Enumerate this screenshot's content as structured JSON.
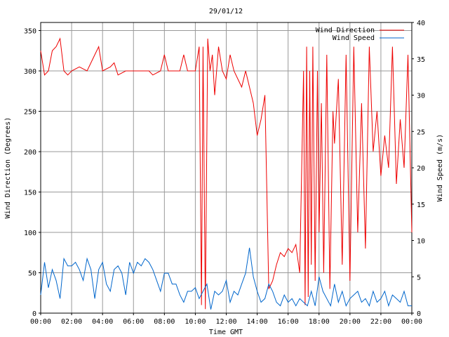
{
  "chart_data": {
    "type": "line",
    "title": "29/01/12",
    "xlabel": "Time GMT",
    "ylabel_left": "Wind Direction (Degrees)",
    "ylabel_right": "Wind Speed (m/s)",
    "x_ticks": [
      "00:00",
      "02:00",
      "04:00",
      "06:00",
      "08:00",
      "10:00",
      "12:00",
      "14:00",
      "16:00",
      "18:00",
      "20:00",
      "22:00",
      "00:00"
    ],
    "x_range_hours": [
      0,
      24
    ],
    "y_left": {
      "min": 0,
      "max": 360,
      "ticks": [
        0,
        50,
        100,
        150,
        200,
        250,
        300,
        350
      ]
    },
    "y_right": {
      "min": 0,
      "max": 40,
      "ticks": [
        0,
        5,
        10,
        15,
        20,
        25,
        30,
        35,
        40
      ]
    },
    "grid": true,
    "legend": "top-right",
    "series": [
      {
        "name": "Wind Direction",
        "axis": "left",
        "color": "#ee0000",
        "x": [
          0,
          0.25,
          0.5,
          0.75,
          1,
          1.25,
          1.5,
          1.75,
          2,
          2.5,
          3,
          3.5,
          3.75,
          4,
          4.5,
          4.75,
          5,
          5.5,
          6,
          6.5,
          7,
          7.25,
          7.75,
          8,
          8.25,
          8.5,
          8.75,
          9,
          9.25,
          9.5,
          9.75,
          10,
          10.25,
          10.4,
          10.5,
          10.65,
          10.8,
          10.95,
          11.1,
          11.25,
          11.5,
          11.75,
          12,
          12.25,
          12.5,
          12.75,
          13,
          13.25,
          13.5,
          13.75,
          14,
          14.25,
          14.5,
          14.75,
          15,
          15.25,
          15.5,
          15.75,
          16,
          16.25,
          16.5,
          16.75,
          17,
          17.1,
          17.2,
          17.3,
          17.4,
          17.5,
          17.6,
          17.75,
          17.9,
          18,
          18.15,
          18.3,
          18.5,
          18.7,
          18.9,
          19,
          19.25,
          19.5,
          19.75,
          20,
          20.25,
          20.5,
          20.75,
          21,
          21.25,
          21.5,
          21.75,
          22,
          22.25,
          22.5,
          22.75,
          23,
          23.25,
          23.5,
          23.75,
          24
        ],
        "values": [
          325,
          295,
          300,
          325,
          330,
          340,
          300,
          295,
          300,
          305,
          300,
          320,
          330,
          300,
          305,
          310,
          295,
          300,
          300,
          300,
          300,
          295,
          300,
          320,
          300,
          300,
          300,
          300,
          320,
          300,
          300,
          300,
          330,
          10,
          330,
          5,
          340,
          300,
          320,
          270,
          330,
          300,
          290,
          320,
          300,
          290,
          280,
          300,
          280,
          260,
          220,
          240,
          270,
          30,
          40,
          60,
          75,
          70,
          80,
          75,
          85,
          50,
          300,
          10,
          330,
          20,
          300,
          60,
          330,
          40,
          300,
          100,
          260,
          50,
          320,
          30,
          250,
          210,
          290,
          60,
          320,
          40,
          330,
          100,
          260,
          80,
          330,
          200,
          250,
          170,
          220,
          180,
          330,
          160,
          240,
          180,
          320,
          100
        ]
      },
      {
        "name": "Wind Speed",
        "axis": "right",
        "color": "#0066cc",
        "x": [
          0,
          0.25,
          0.5,
          0.75,
          1,
          1.25,
          1.5,
          1.75,
          2,
          2.25,
          2.5,
          2.75,
          3,
          3.25,
          3.5,
          3.75,
          4,
          4.25,
          4.5,
          4.75,
          5,
          5.25,
          5.5,
          5.75,
          6,
          6.25,
          6.5,
          6.75,
          7,
          7.25,
          7.5,
          7.75,
          8,
          8.25,
          8.5,
          8.75,
          9,
          9.25,
          9.5,
          9.75,
          10,
          10.25,
          10.5,
          10.75,
          11,
          11.25,
          11.5,
          11.75,
          12,
          12.25,
          12.5,
          12.75,
          13,
          13.25,
          13.5,
          13.75,
          14,
          14.25,
          14.5,
          14.75,
          15,
          15.25,
          15.5,
          15.75,
          16,
          16.25,
          16.5,
          16.75,
          17,
          17.25,
          17.5,
          17.75,
          18,
          18.25,
          18.5,
          18.75,
          19,
          19.25,
          19.5,
          19.75,
          20,
          20.25,
          20.5,
          20.75,
          21,
          21.25,
          21.5,
          21.75,
          22,
          22.25,
          22.5,
          22.75,
          23,
          23.25,
          23.5,
          23.75,
          24
        ],
        "values": [
          2.5,
          7,
          3.5,
          6,
          4.5,
          2,
          7.5,
          6.5,
          6.5,
          7,
          6,
          4.5,
          7.5,
          6,
          2,
          6,
          7,
          4,
          3,
          6,
          6.5,
          5.5,
          2.5,
          7,
          5.5,
          7,
          6.5,
          7.5,
          7,
          6,
          4.5,
          3,
          5.5,
          5.5,
          4,
          4,
          2.5,
          1.5,
          3,
          3,
          3.5,
          2,
          3,
          4,
          0.5,
          3,
          2.5,
          3,
          4.5,
          1.5,
          3,
          2.5,
          4,
          5.5,
          9,
          5,
          3,
          1.5,
          2,
          4,
          3,
          1.5,
          1,
          2.5,
          1.5,
          2,
          1,
          2,
          1.5,
          1,
          3,
          1,
          5,
          3,
          2,
          1,
          4,
          1.5,
          3,
          1,
          2,
          2.5,
          3,
          1.5,
          2,
          1,
          3,
          1.5,
          2,
          3,
          1,
          2.5,
          2,
          1.5,
          3,
          1,
          1
        ]
      }
    ]
  }
}
